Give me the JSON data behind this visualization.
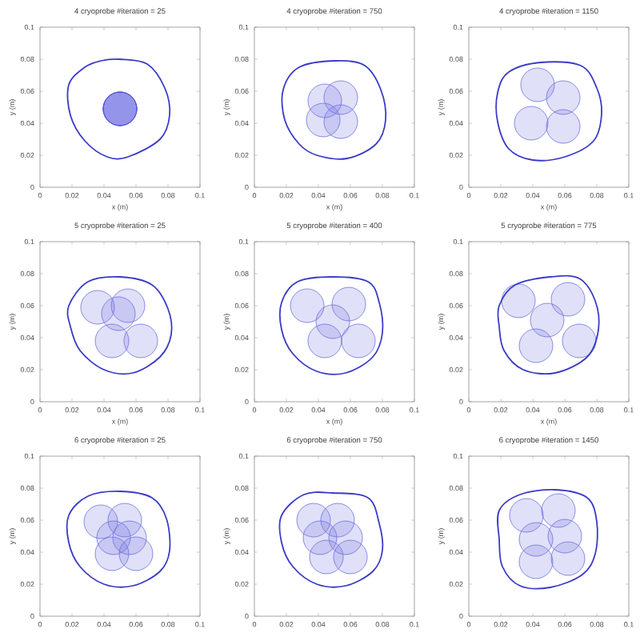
{
  "chart_data": [
    {
      "type": "bubble",
      "title": "4 cryoprobe #iteration = 25",
      "xlabel": "x (m)",
      "ylabel": "y (m)",
      "xlim": [
        0,
        0.1
      ],
      "ylim": [
        0,
        0.1
      ],
      "xticks": [
        0,
        0.02,
        0.04,
        0.06,
        0.08,
        0.1
      ],
      "yticks": [
        0,
        0.02,
        0.04,
        0.06,
        0.08,
        0.1
      ],
      "series": [
        {
          "type": "bubble",
          "color": "#5555dd",
          "x": [
            0.05,
            0.05,
            0.05,
            0.05
          ],
          "values": [
            0.049,
            0.049,
            0.049,
            0.049
          ],
          "sizes": [
            1,
            1,
            1,
            1
          ]
        }
      ]
    },
    {
      "type": "bubble",
      "title": "4 cryoprobe #iteration = 750",
      "xlabel": "x (m)",
      "ylabel": "y (m)",
      "xlim": [
        0,
        0.1
      ],
      "ylim": [
        0,
        0.1
      ],
      "xticks": [
        0,
        0.02,
        0.04,
        0.06,
        0.08,
        0.1
      ],
      "yticks": [
        0,
        0.02,
        0.04,
        0.06,
        0.08,
        0.1
      ],
      "series": [
        {
          "type": "bubble",
          "color": "#7070e0",
          "x": [
            0.044,
            0.054,
            0.043,
            0.054
          ],
          "values": [
            0.054,
            0.056,
            0.042,
            0.041
          ],
          "sizes": [
            1,
            1,
            1,
            1
          ]
        }
      ]
    },
    {
      "type": "bubble",
      "title": "4 cryoprobe #iteration = 1150",
      "xlabel": "x (m)",
      "ylabel": "y (m)",
      "xlim": [
        0,
        0.1
      ],
      "ylim": [
        0,
        0.1
      ],
      "xticks": [
        0,
        0.02,
        0.04,
        0.06,
        0.08,
        0.1
      ],
      "yticks": [
        0,
        0.02,
        0.04,
        0.06,
        0.08,
        0.1
      ],
      "series": [
        {
          "type": "bubble",
          "color": "#7070e0",
          "x": [
            0.043,
            0.059,
            0.039,
            0.059
          ],
          "values": [
            0.064,
            0.056,
            0.04,
            0.038
          ],
          "sizes": [
            1,
            1,
            1,
            1
          ]
        }
      ]
    },
    {
      "type": "bubble",
      "title": "5 cryoprobe #iteration = 25",
      "xlabel": "x (m)",
      "ylabel": "y (m)",
      "xlim": [
        0,
        0.1
      ],
      "ylim": [
        0,
        0.1
      ],
      "xticks": [
        0,
        0.02,
        0.04,
        0.06,
        0.08,
        0.1
      ],
      "yticks": [
        0,
        0.02,
        0.04,
        0.06,
        0.08,
        0.1
      ],
      "series": [
        {
          "type": "bubble",
          "color": "#7070e0",
          "x": [
            0.036,
            0.055,
            0.049,
            0.045,
            0.063
          ],
          "values": [
            0.059,
            0.06,
            0.055,
            0.038,
            0.038
          ],
          "sizes": [
            1,
            1,
            1,
            1,
            1
          ]
        }
      ]
    },
    {
      "type": "bubble",
      "title": "5 cryoprobe #iteration = 400",
      "xlabel": "x (m)",
      "ylabel": "y (m)",
      "xlim": [
        0,
        0.1
      ],
      "ylim": [
        0,
        0.1
      ],
      "xticks": [
        0,
        0.02,
        0.04,
        0.06,
        0.08,
        0.1
      ],
      "yticks": [
        0,
        0.02,
        0.04,
        0.06,
        0.08,
        0.1
      ],
      "series": [
        {
          "type": "bubble",
          "color": "#7070e0",
          "x": [
            0.033,
            0.059,
            0.049,
            0.044,
            0.065
          ],
          "values": [
            0.06,
            0.061,
            0.05,
            0.038,
            0.038
          ],
          "sizes": [
            1,
            1,
            1,
            1,
            1
          ]
        }
      ]
    },
    {
      "type": "bubble",
      "title": "5 cryoprobe #iteration = 775",
      "xlabel": "x (m)",
      "ylabel": "y (m)",
      "xlim": [
        0,
        0.1
      ],
      "ylim": [
        0,
        0.1
      ],
      "xticks": [
        0,
        0.02,
        0.04,
        0.06,
        0.08,
        0.1
      ],
      "yticks": [
        0,
        0.02,
        0.04,
        0.06,
        0.08,
        0.1
      ],
      "series": [
        {
          "type": "bubble",
          "color": "#7070e0",
          "x": [
            0.031,
            0.062,
            0.049,
            0.042,
            0.069
          ],
          "values": [
            0.063,
            0.064,
            0.051,
            0.035,
            0.038
          ],
          "sizes": [
            1,
            1,
            1,
            1,
            1
          ]
        }
      ]
    },
    {
      "type": "bubble",
      "title": "6 cryoprobe #iteration = 25",
      "ylabel": "y (m)",
      "xlim": [
        0,
        0.1
      ],
      "ylim": [
        0,
        0.1
      ],
      "xticks": [
        0,
        0.02,
        0.04,
        0.06,
        0.08,
        0.1
      ],
      "yticks": [
        0,
        0.02,
        0.04,
        0.06,
        0.08,
        0.1
      ],
      "series": [
        {
          "type": "bubble",
          "color": "#7070e0",
          "x": [
            0.038,
            0.053,
            0.046,
            0.056,
            0.045,
            0.06
          ],
          "values": [
            0.059,
            0.06,
            0.049,
            0.049,
            0.039,
            0.039
          ],
          "sizes": [
            1,
            1,
            1,
            1,
            1,
            1
          ]
        }
      ]
    },
    {
      "type": "bubble",
      "title": "6 cryoprobe #iteration = 750",
      "ylabel": "y (m)",
      "xlim": [
        0,
        0.1
      ],
      "ylim": [
        0,
        0.1
      ],
      "xticks": [
        0,
        0.02,
        0.04,
        0.06,
        0.08,
        0.1
      ],
      "yticks": [
        0,
        0.02,
        0.04,
        0.06,
        0.08,
        0.1
      ],
      "series": [
        {
          "type": "bubble",
          "color": "#7070e0",
          "x": [
            0.037,
            0.052,
            0.041,
            0.057,
            0.045,
            0.06
          ],
          "values": [
            0.06,
            0.06,
            0.049,
            0.049,
            0.037,
            0.037
          ],
          "sizes": [
            1,
            1,
            1,
            1,
            1,
            1
          ]
        }
      ]
    },
    {
      "type": "bubble",
      "title": "6 cryoprobe #iteration = 1450",
      "ylabel": "y (m)",
      "xlim": [
        0,
        0.1
      ],
      "ylim": [
        0,
        0.1
      ],
      "xticks": [
        0,
        0.02,
        0.04,
        0.06,
        0.08,
        0.1
      ],
      "yticks": [
        0,
        0.02,
        0.04,
        0.06,
        0.08,
        0.1
      ],
      "series": [
        {
          "type": "bubble",
          "color": "#7070e0",
          "x": [
            0.036,
            0.056,
            0.042,
            0.06,
            0.042,
            0.062
          ],
          "values": [
            0.063,
            0.066,
            0.048,
            0.05,
            0.034,
            0.036
          ],
          "sizes": [
            1,
            1,
            1,
            1,
            1,
            1
          ]
        }
      ]
    }
  ]
}
